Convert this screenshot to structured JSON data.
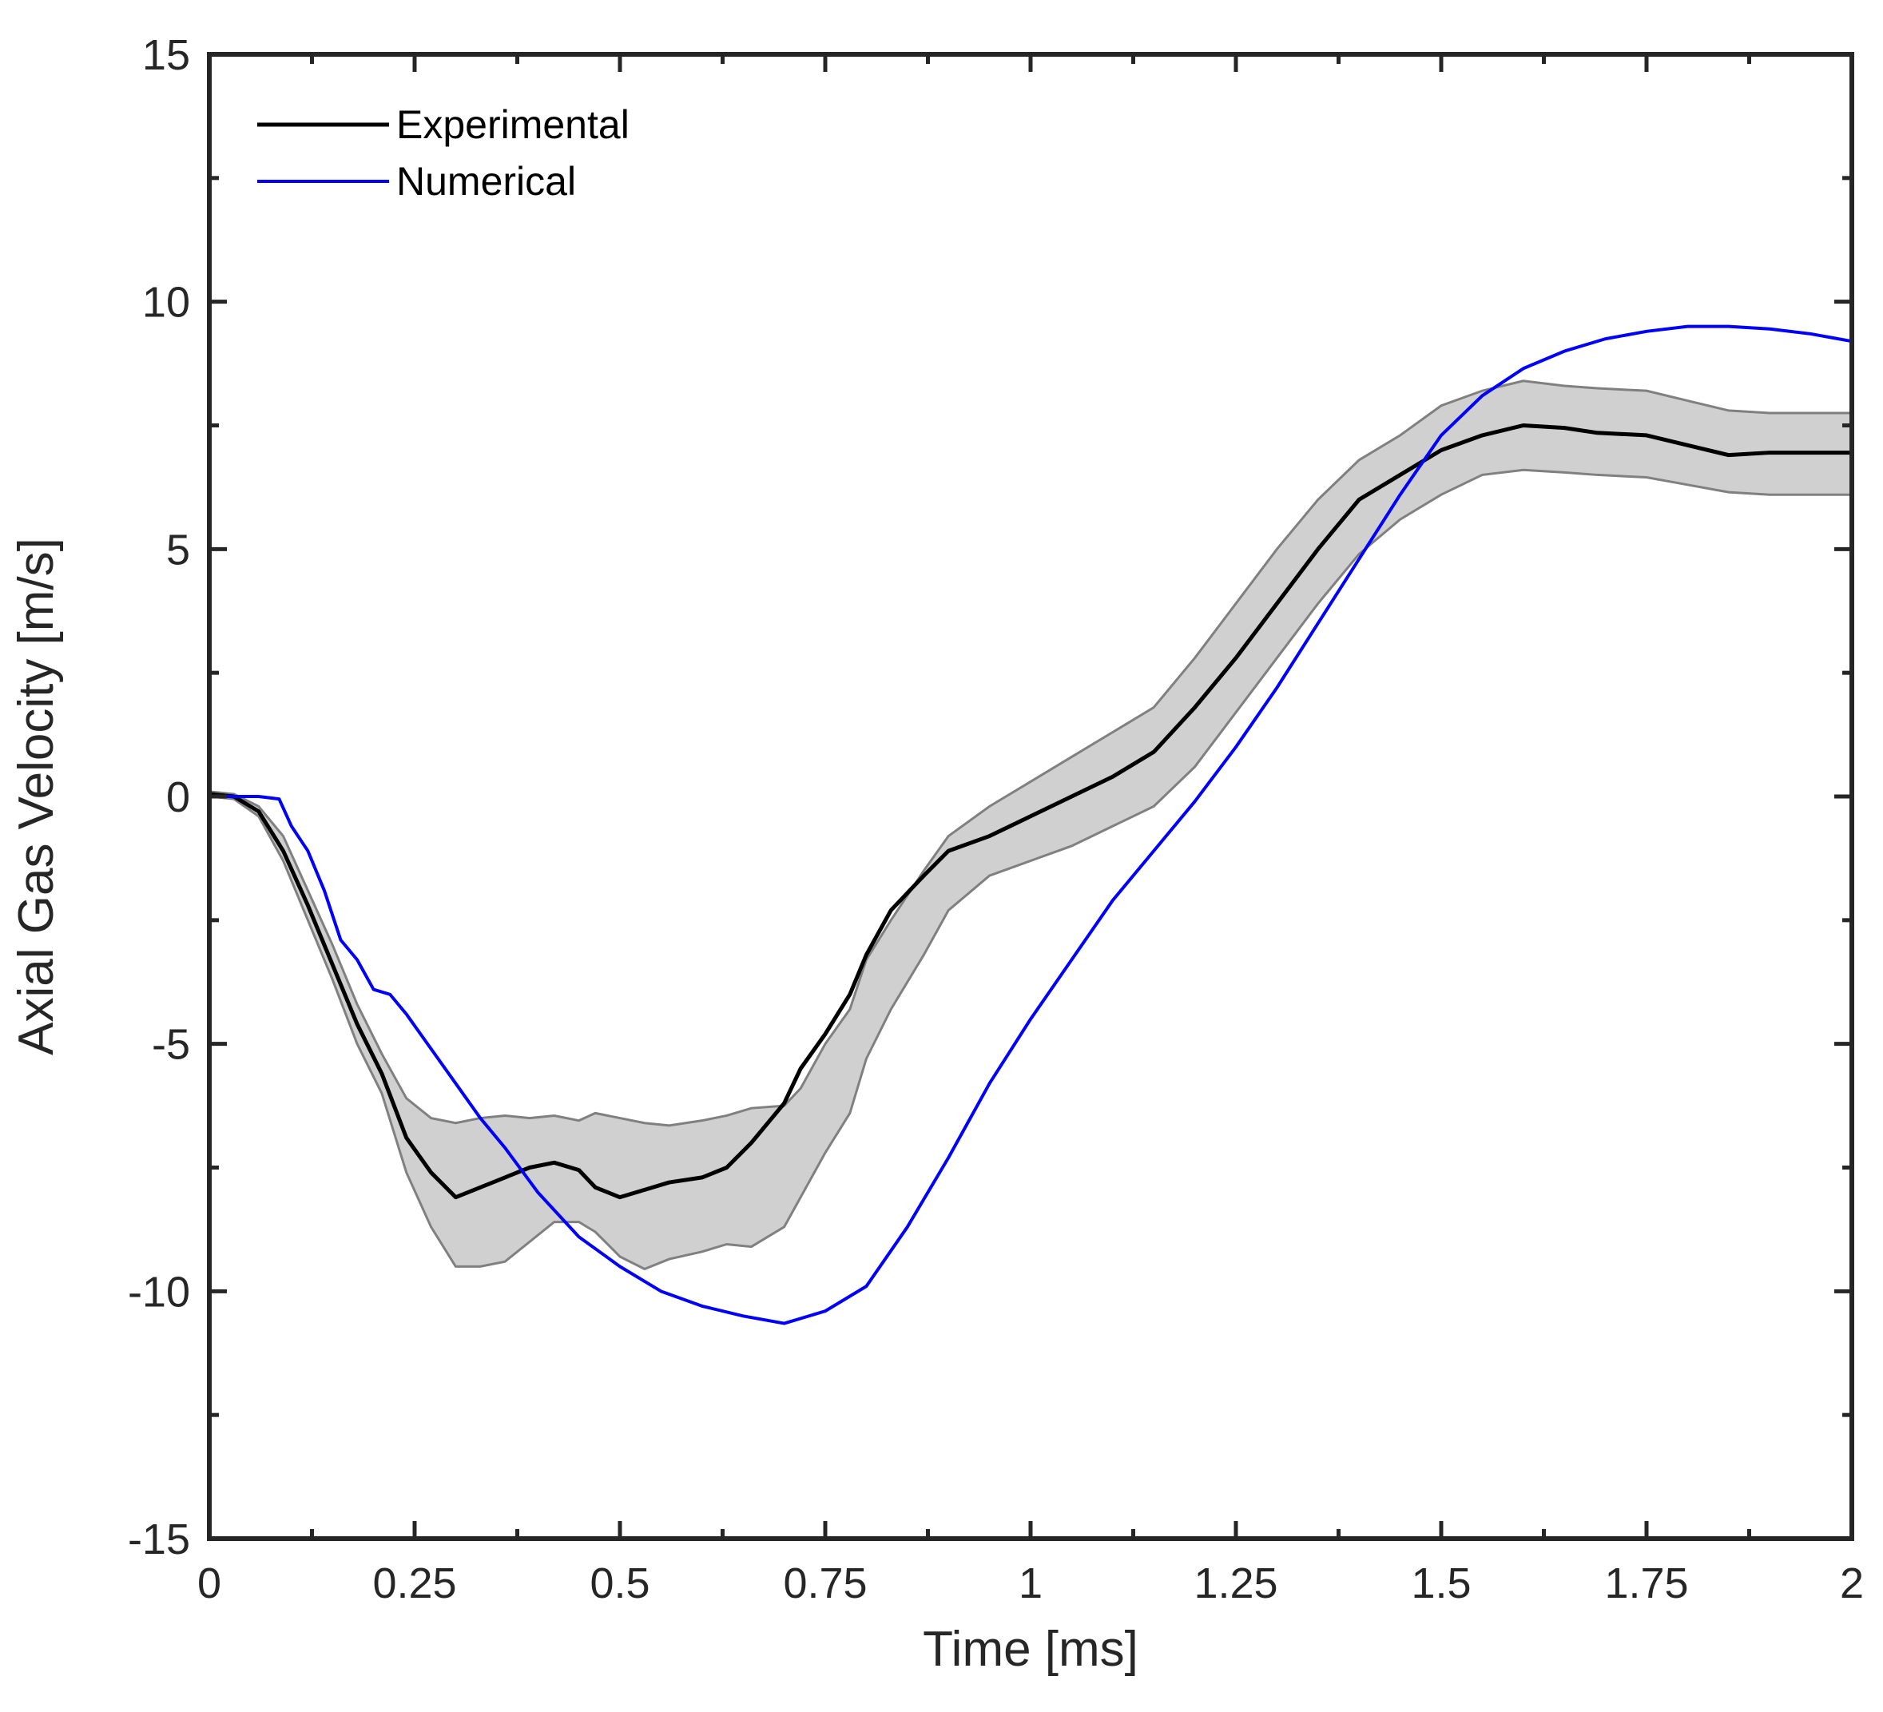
{
  "chart_data": {
    "type": "line",
    "xlabel": "Time [ms]",
    "ylabel": "Axial Gas Velocity [m/s]",
    "xlim": [
      0,
      2
    ],
    "ylim": [
      -15,
      15
    ],
    "xticks": [
      0,
      0.25,
      0.5,
      0.75,
      1,
      1.25,
      1.5,
      1.75,
      2
    ],
    "xtick_labels": [
      "0",
      "0.25",
      "0.5",
      "0.75",
      "1",
      "1.25",
      "1.5",
      "1.75",
      "2"
    ],
    "yticks": [
      -15,
      -10,
      -5,
      0,
      5,
      10,
      15
    ],
    "ytick_labels": [
      "-15",
      "-10",
      "-5",
      "0",
      "5",
      "10",
      "15"
    ],
    "grid": false,
    "legend_position": "top-left",
    "series": [
      {
        "name": "Experimental",
        "color": "#000000",
        "x": [
          0,
          0.03,
          0.06,
          0.09,
          0.12,
          0.15,
          0.18,
          0.21,
          0.24,
          0.27,
          0.3,
          0.33,
          0.36,
          0.39,
          0.42,
          0.45,
          0.47,
          0.5,
          0.53,
          0.56,
          0.6,
          0.63,
          0.66,
          0.7,
          0.72,
          0.75,
          0.78,
          0.8,
          0.83,
          0.87,
          0.9,
          0.95,
          1.0,
          1.05,
          1.1,
          1.15,
          1.2,
          1.25,
          1.3,
          1.35,
          1.4,
          1.45,
          1.5,
          1.55,
          1.6,
          1.65,
          1.69,
          1.75,
          1.8,
          1.85,
          1.9,
          1.95,
          2.0
        ],
        "y": [
          0.05,
          0.0,
          -0.3,
          -1.1,
          -2.2,
          -3.4,
          -4.6,
          -5.6,
          -6.9,
          -7.6,
          -8.1,
          -7.9,
          -7.7,
          -7.5,
          -7.4,
          -7.55,
          -7.9,
          -8.1,
          -7.95,
          -7.8,
          -7.7,
          -7.5,
          -7.0,
          -6.2,
          -5.5,
          -4.8,
          -4.0,
          -3.2,
          -2.3,
          -1.6,
          -1.1,
          -0.8,
          -0.4,
          0.0,
          0.4,
          0.9,
          1.8,
          2.8,
          3.9,
          5.0,
          6.0,
          6.5,
          7.0,
          7.3,
          7.5,
          7.45,
          7.35,
          7.3,
          7.1,
          6.9,
          6.95,
          6.95,
          6.95
        ]
      },
      {
        "name": "Numerical",
        "color": "#0000ff",
        "x": [
          0,
          0.03,
          0.06,
          0.085,
          0.1,
          0.12,
          0.14,
          0.16,
          0.18,
          0.2,
          0.22,
          0.24,
          0.27,
          0.3,
          0.33,
          0.36,
          0.4,
          0.45,
          0.5,
          0.55,
          0.6,
          0.65,
          0.7,
          0.75,
          0.8,
          0.85,
          0.9,
          0.95,
          1.0,
          1.05,
          1.1,
          1.15,
          1.2,
          1.25,
          1.3,
          1.35,
          1.4,
          1.45,
          1.5,
          1.55,
          1.6,
          1.65,
          1.7,
          1.75,
          1.8,
          1.85,
          1.9,
          1.95,
          2.0
        ],
        "y": [
          0.0,
          0.0,
          0.0,
          -0.05,
          -0.6,
          -1.1,
          -1.9,
          -2.9,
          -3.3,
          -3.9,
          -4.0,
          -4.4,
          -5.1,
          -5.8,
          -6.5,
          -7.1,
          -8.0,
          -8.9,
          -9.5,
          -10.0,
          -10.3,
          -10.5,
          -10.65,
          -10.4,
          -9.9,
          -8.7,
          -7.3,
          -5.8,
          -4.5,
          -3.3,
          -2.1,
          -1.1,
          -0.1,
          1.0,
          2.2,
          3.5,
          4.8,
          6.1,
          7.3,
          8.1,
          8.65,
          9.0,
          9.25,
          9.4,
          9.5,
          9.5,
          9.45,
          9.35,
          9.2
        ]
      }
    ],
    "uncertainty_band": {
      "color": "#d0d0d0",
      "edge_color": "#808080",
      "x": [
        0,
        0.03,
        0.06,
        0.09,
        0.12,
        0.15,
        0.18,
        0.21,
        0.24,
        0.27,
        0.3,
        0.33,
        0.36,
        0.39,
        0.42,
        0.45,
        0.47,
        0.5,
        0.53,
        0.56,
        0.6,
        0.63,
        0.66,
        0.7,
        0.72,
        0.75,
        0.78,
        0.8,
        0.83,
        0.87,
        0.9,
        0.95,
        1.0,
        1.05,
        1.1,
        1.15,
        1.2,
        1.25,
        1.3,
        1.35,
        1.4,
        1.45,
        1.5,
        1.55,
        1.6,
        1.65,
        1.69,
        1.75,
        1.8,
        1.85,
        1.9,
        1.95,
        2.0
      ],
      "lower": [
        0.0,
        -0.05,
        -0.4,
        -1.3,
        -2.5,
        -3.7,
        -5.0,
        -6.0,
        -7.6,
        -8.7,
        -9.5,
        -9.5,
        -9.4,
        -9.0,
        -8.6,
        -8.6,
        -8.8,
        -9.3,
        -9.55,
        -9.35,
        -9.2,
        -9.05,
        -9.1,
        -8.7,
        -8.1,
        -7.2,
        -6.4,
        -5.3,
        -4.3,
        -3.2,
        -2.3,
        -1.6,
        -1.3,
        -1.0,
        -0.6,
        -0.2,
        0.6,
        1.7,
        2.8,
        3.9,
        4.9,
        5.6,
        6.1,
        6.5,
        6.6,
        6.55,
        6.5,
        6.45,
        6.3,
        6.15,
        6.1,
        6.1,
        6.1
      ],
      "upper": [
        0.1,
        0.05,
        -0.2,
        -0.8,
        -1.9,
        -3.0,
        -4.2,
        -5.2,
        -6.1,
        -6.5,
        -6.6,
        -6.5,
        -6.45,
        -6.5,
        -6.45,
        -6.55,
        -6.4,
        -6.5,
        -6.6,
        -6.65,
        -6.55,
        -6.45,
        -6.3,
        -6.25,
        -5.9,
        -5.0,
        -4.3,
        -3.3,
        -2.5,
        -1.5,
        -0.8,
        -0.2,
        0.3,
        0.8,
        1.3,
        1.8,
        2.8,
        3.9,
        5.0,
        6.0,
        6.8,
        7.3,
        7.9,
        8.2,
        8.4,
        8.3,
        8.25,
        8.2,
        8.0,
        7.8,
        7.75,
        7.75,
        7.75
      ]
    }
  }
}
